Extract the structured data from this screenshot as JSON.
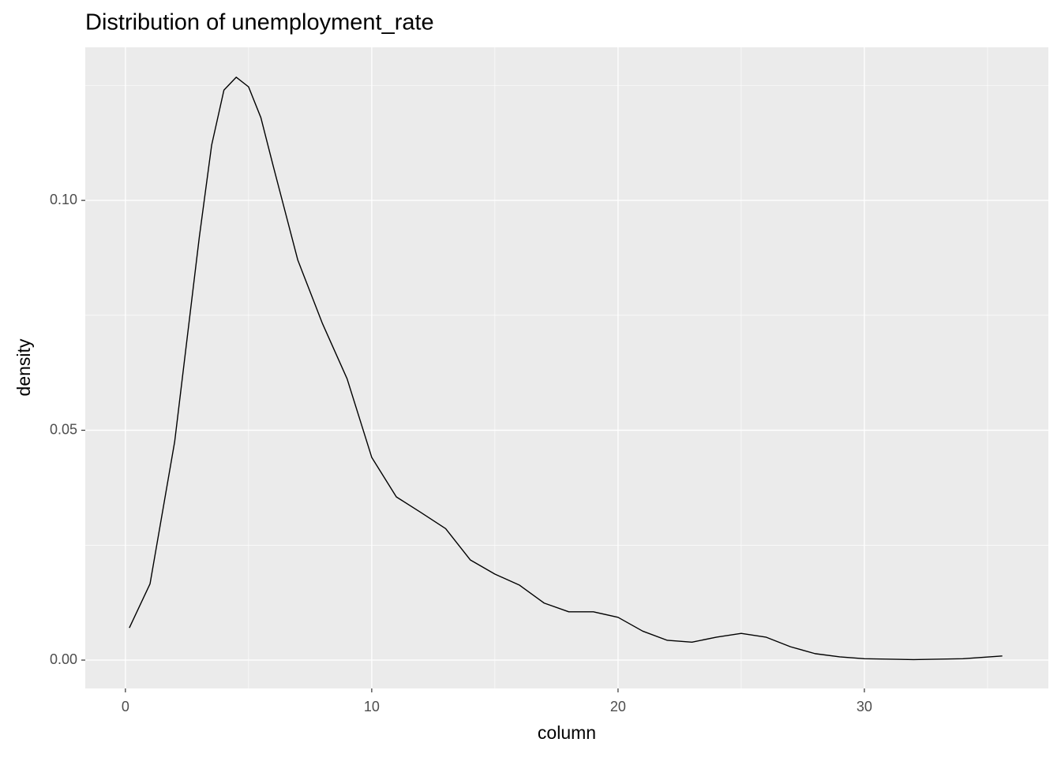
{
  "chart_data": {
    "type": "density",
    "title": "Distribution of unemployment_rate",
    "x_label": "column",
    "y_label": "density",
    "x": [
      0.16,
      1,
      2,
      3,
      3.5,
      4,
      4.5,
      5,
      5.5,
      6,
      7,
      8,
      9,
      10,
      11,
      12,
      13,
      14,
      15,
      16,
      17,
      18,
      19,
      20,
      21,
      22,
      23,
      24,
      25,
      26,
      27,
      28,
      29,
      30,
      32,
      34,
      35.6
    ],
    "values": [
      0.007,
      0.0166,
      0.0475,
      0.092,
      0.112,
      0.124,
      0.1268,
      0.1247,
      0.118,
      0.1075,
      0.087,
      0.0732,
      0.0612,
      0.0441,
      0.0355,
      0.0321,
      0.0286,
      0.0218,
      0.0187,
      0.0163,
      0.0124,
      0.0105,
      0.0105,
      0.0093,
      0.0063,
      0.0043,
      0.0039,
      0.005,
      0.0058,
      0.005,
      0.0029,
      0.0014,
      0.0007,
      0.0003,
      0.0001,
      0.0003,
      0.0009
    ],
    "color": "#000000",
    "xlim": [
      -1.63,
      37.47
    ],
    "ylim": [
      -0.00617,
      0.1333
    ],
    "xticks": [
      0,
      10,
      20,
      30
    ],
    "yticks": [
      {
        "value": 0,
        "label": "0.00"
      },
      {
        "value": 0.05,
        "label": "0.05"
      },
      {
        "value": 0.1,
        "label": "0.10"
      }
    ],
    "xminor": [
      5,
      15,
      25,
      35
    ],
    "yminor": [
      0.025,
      0.075,
      0.125
    ],
    "grid": true
  }
}
